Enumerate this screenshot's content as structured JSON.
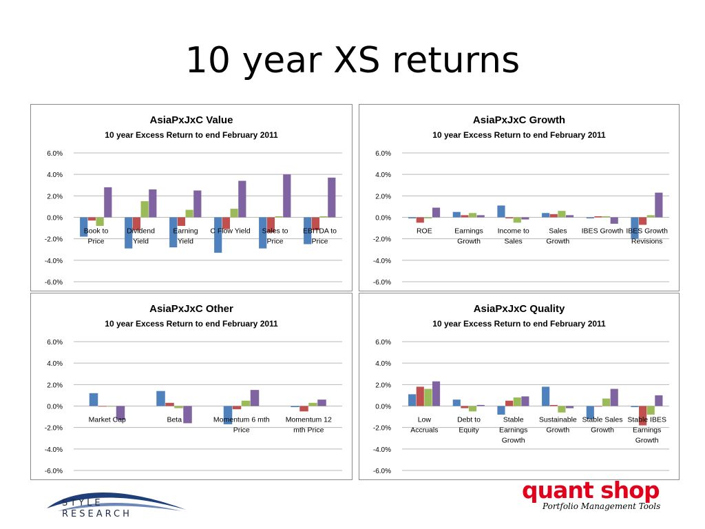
{
  "slide": {
    "title": "10 year XS returns"
  },
  "logos": {
    "left_text": "STYLE RESEARCH",
    "left_line1": "STYLE",
    "left_line2": "RESEARCH",
    "right_main": "quant shop",
    "right_sub": "Portfolio Management Tools"
  },
  "colors": {
    "series": [
      "#4f81bd",
      "#c0504d",
      "#9bbb59",
      "#8064a2"
    ]
  },
  "chart_data": [
    {
      "id": "value",
      "type": "bar",
      "title": "AsiaPxJxC Value",
      "subtitle": "10 year Excess Return to end February 2011",
      "ylim": [
        -6,
        6
      ],
      "yticks": [
        "6.0%",
        "4.0%",
        "2.0%",
        "0.0%",
        "-2.0%",
        "-4.0%",
        "-6.0%"
      ],
      "categories": [
        [
          "Book to",
          "Price"
        ],
        [
          "Dividend",
          "Yield"
        ],
        [
          "Earning",
          "Yield"
        ],
        [
          "C Flow Yield"
        ],
        [
          "Sales to",
          "Price"
        ],
        [
          "EBITDA  to",
          "Price"
        ]
      ],
      "series": [
        {
          "values": [
            -1.8,
            -2.9,
            -2.8,
            -3.3,
            -2.9,
            -2.5
          ]
        },
        {
          "values": [
            -0.3,
            -1.2,
            -0.8,
            -1.1,
            -1.4,
            -1.2
          ]
        },
        {
          "values": [
            -0.8,
            1.5,
            0.7,
            0.8,
            0.1,
            0.1
          ]
        },
        {
          "values": [
            2.8,
            2.6,
            2.5,
            3.4,
            4.0,
            3.7
          ]
        }
      ]
    },
    {
      "id": "growth",
      "type": "bar",
      "title": "AsiaPxJxC Growth",
      "subtitle": "10 year Excess Return to end February 2011",
      "ylim": [
        -6,
        6
      ],
      "yticks": [
        "6.0%",
        "4.0%",
        "2.0%",
        "0.0%",
        "-2.0%",
        "-4.0%",
        "-6.0%"
      ],
      "categories": [
        [
          "ROE"
        ],
        [
          "Earnings",
          "Growth"
        ],
        [
          "Income to",
          "Sales"
        ],
        [
          "Sales",
          "Growth"
        ],
        [
          "IBES Growth"
        ],
        [
          "IBES Growth",
          "Revisions"
        ]
      ],
      "series": [
        {
          "values": [
            -0.1,
            0.5,
            1.1,
            0.4,
            -0.1,
            -2.0
          ]
        },
        {
          "values": [
            -0.5,
            0.2,
            -0.1,
            0.3,
            0.1,
            -0.7
          ]
        },
        {
          "values": [
            -0.1,
            0.4,
            -0.5,
            0.6,
            0.1,
            0.2
          ]
        },
        {
          "values": [
            0.9,
            0.2,
            -0.2,
            0.2,
            -0.6,
            2.3
          ]
        }
      ]
    },
    {
      "id": "other",
      "type": "bar",
      "title": "AsiaPxJxC Other",
      "subtitle": "10 year Excess Return to end February 2011",
      "ylim": [
        -6,
        6
      ],
      "yticks": [
        "6.0%",
        "4.0%",
        "2.0%",
        "0.0%",
        "-2.0%",
        "-4.0%",
        "-6.0%"
      ],
      "categories": [
        [
          "Market Cap"
        ],
        [
          "Beta"
        ],
        [
          "Momentum 6 mth",
          "Price"
        ],
        [
          "Momentum 12",
          "mth Price"
        ]
      ],
      "series": [
        {
          "values": [
            1.2,
            1.4,
            -1.7,
            -0.1
          ]
        },
        {
          "values": [
            0.0,
            0.3,
            -0.3,
            -0.5
          ]
        },
        {
          "values": [
            0.0,
            -0.2,
            0.5,
            0.3
          ]
        },
        {
          "values": [
            -1.3,
            -1.6,
            1.5,
            0.6
          ]
        }
      ]
    },
    {
      "id": "quality",
      "type": "bar",
      "title": "AsiaPxJxC Quality",
      "subtitle": "10 year Excess Return to end February 2011",
      "ylim": [
        -6,
        6
      ],
      "yticks": [
        "6.0%",
        "4.0%",
        "2.0%",
        "0.0%",
        "-2.0%",
        "-4.0%",
        "-6.0%"
      ],
      "categories": [
        [
          "Low",
          "Accruals"
        ],
        [
          "Debt to",
          "Equity"
        ],
        [
          "Stable",
          "Earnings",
          "Growth"
        ],
        [
          "Sustainable",
          "Growth"
        ],
        [
          "Stable Sales",
          "Growth"
        ],
        [
          "Stable IBES",
          "Earnings",
          "Growth"
        ]
      ],
      "series": [
        {
          "values": [
            1.1,
            0.6,
            -0.8,
            1.8,
            -1.2,
            -0.1
          ]
        },
        {
          "values": [
            1.8,
            -0.2,
            0.5,
            0.1,
            0.0,
            -1.8
          ]
        },
        {
          "values": [
            1.6,
            -0.5,
            0.8,
            -0.6,
            0.7,
            -0.8
          ]
        },
        {
          "values": [
            2.3,
            0.1,
            0.9,
            -0.2,
            1.6,
            1.0
          ]
        }
      ]
    }
  ]
}
